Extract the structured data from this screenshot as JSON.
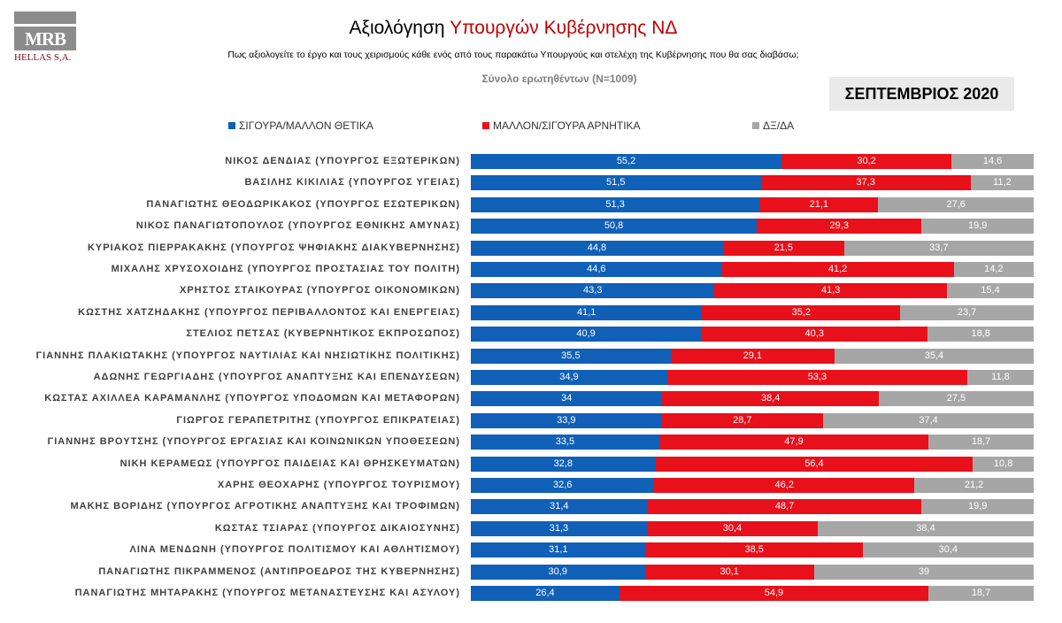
{
  "logo": {
    "text": "MRB",
    "subtitle": "HELLAS S.A."
  },
  "header": {
    "title_black": "Αξιολόγηση",
    "title_red": "Υπουργών Κυβέρνησης ΝΔ",
    "question": "Πως αξιολογείτε το έργο και τους χειρισμούς κάθε ενός  από τους παρακάτω Υπουργούς και στελέχη της  Κυβέρνησης  που θα σας διαβάσω;",
    "total": "Σύνολο ερωτηθέντων (Ν=1009)",
    "date": "ΣΕΠΤΕΜΒΡΙΟΣ 2020"
  },
  "chart_data": {
    "type": "bar",
    "orientation": "horizontal",
    "stacked": true,
    "grid": false,
    "legend_position": "top",
    "categories": [
      "ΝΙΚΟΣ ΔΕΝΔΙΑΣ (ΥΠΟΥΡΓΟΣ ΕΞΩΤΕΡΙΚΩΝ)",
      "ΒΑΣΙΛΗΣ ΚΙΚΙΛΙΑΣ (ΥΠΟΥΡΓΟΣ ΥΓΕΙΑΣ)",
      "ΠΑΝΑΓΙΩΤΗΣ ΘΕΟΔΩΡΙΚΑΚΟΣ (ΥΠΟΥΡΓΟΣ ΕΣΩΤΕΡΙΚΩΝ)",
      "ΝΙΚΟΣ ΠΑΝΑΓΙΩΤΟΠΟΥΛΟΣ (ΥΠΟΥΡΓΟΣ ΕΘΝΙΚΗΣ ΑΜΥΝΑΣ)",
      "ΚΥΡΙΑΚΟΣ ΠΙΕΡΡΑΚΑΚΗΣ (ΥΠΟΥΡΓΟΣ ΨΗΦΙΑΚΗΣ ΔΙΑΚΥΒΕΡΝΗΣΗΣ)",
      "ΜΙΧΑΛΗΣ ΧΡΥΣΟΧΟΙΔΗΣ (ΥΠΟΥΡΓΟΣ ΠΡΟΣΤΑΣΙΑΣ ΤΟΥ ΠΟΛΙΤΗ)",
      "ΧΡΗΣΤΟΣ ΣΤΑΙΚΟΥΡΑΣ (ΥΠΟΥΡΓΟΣ ΟΙΚΟΝΟΜΙΚΩΝ)",
      "ΚΩΣΤΗΣ ΧΑΤΖΗΔΑΚΗΣ (ΥΠΟΥΡΓΟΣ ΠΕΡΙΒΑΛΛΟΝΤΟΣ ΚΑΙ ΕΝΕΡΓΕΙΑΣ)",
      "ΣΤΕΛΙΟΣ ΠΕΤΣΑΣ (ΚΥΒΕΡΝΗΤΙΚΟΣ ΕΚΠΡΟΣΩΠΟΣ)",
      "ΓΙΑΝΝΗΣ ΠΛΑΚΙΩΤΑΚΗΣ (ΥΠΟΥΡΓΟΣ ΝΑΥΤΙΛΙΑΣ ΚΑΙ ΝΗΣΙΩΤΙΚΗΣ ΠΟΛΙΤΙΚΗΣ)",
      "ΑΔΩΝΗΣ ΓΕΩΡΓΙΑΔΗΣ (ΥΠΟΥΡΓΟΣ ΑΝΑΠΤΥΞΗΣ ΚΑΙ ΕΠΕΝΔΥΣΕΩΝ)",
      "ΚΩΣΤΑΣ ΑΧΙΛΛΕΑ ΚΑΡΑΜΑΝΛΗΣ (ΥΠΟΥΡΓΟΣ ΥΠΟΔΟΜΩΝ ΚΑΙ ΜΕΤΑΦΟΡΩΝ)",
      "ΓΙΩΡΓΟΣ ΓΕΡΑΠΕΤΡΙΤΗΣ (ΥΠΟΥΡΓΟΣ ΕΠΙΚΡΑΤΕΙΑΣ)",
      "ΓΙΑΝΝΗΣ ΒΡΟΥΤΣΗΣ (ΥΠΟΥΡΓΟΣ ΕΡΓΑΣΙΑΣ ΚΑΙ ΚΟΙΝΩΝΙΚΩΝ ΥΠΟΘΕΣΕΩΝ)",
      "ΝΙΚΗ ΚΕΡΑΜΕΩΣ (ΥΠΟΥΡΓΟΣ ΠΑΙΔΕΙΑΣ ΚΑΙ ΘΡΗΣΚΕΥΜΑΤΩΝ)",
      "ΧΑΡΗΣ ΘΕΟΧΑΡΗΣ (ΥΠΟΥΡΓΟΣ ΤΟΥΡΙΣΜΟΥ)",
      "ΜΑΚΗΣ ΒΟΡΙΔΗΣ (ΥΠΟΥΡΓΟΣ ΑΓΡΟΤΙΚΗΣ ΑΝΑΠΤΥΞΗΣ ΚΑΙ ΤΡΟΦΙΜΩΝ)",
      "ΚΩΣΤΑΣ ΤΣΙΑΡΑΣ (ΥΠΟΥΡΓΟΣ ΔΙΚΑΙΟΣΥΝΗΣ)",
      "ΛΙΝΑ ΜΕΝΔΩΝΗ (ΥΠΟΥΡΓΟΣ ΠΟΛΙΤΙΣΜΟΥ ΚΑΙ ΑΘΛΗΤΙΣΜΟΥ)",
      "ΠΑΝΑΓΙΩΤΗΣ ΠΙΚΡΑΜΜΕΝΟΣ (ΑΝΤΙΠΡΟΕΔΡΟΣ ΤΗΣ ΚΥΒΕΡΝΗΣΗΣ)",
      "ΠΑΝΑΓΙΩΤΗΣ ΜΗΤΑΡΑΚΗΣ (ΥΠΟΥΡΓΟΣ ΜΕΤΑΝΑΣΤΕΥΣΗΣ ΚΑΙ ΑΣΥΛΟΥ)"
    ],
    "series": [
      {
        "name": "ΣΙΓΟΥΡΑ/ΜΑΛΛΟΝ ΘΕΤΙΚΑ",
        "color": "#1060b8",
        "values": [
          55.2,
          51.5,
          51.3,
          50.8,
          44.8,
          44.6,
          43.3,
          41.1,
          40.9,
          35.5,
          34.9,
          34,
          33.9,
          33.5,
          32.8,
          32.6,
          31.4,
          31.3,
          31.1,
          30.9,
          26.4
        ]
      },
      {
        "name": "ΜΑΛΛΟΝ/ΣΙΓΟΥΡΑ ΑΡΝΗΤΙΚΑ",
        "color": "#e8101a",
        "values": [
          30.2,
          37.3,
          21.1,
          29.3,
          21.5,
          41.2,
          41.3,
          35.2,
          40.3,
          29.1,
          53.3,
          38.4,
          28.7,
          47.9,
          56.4,
          46.2,
          48.7,
          30.4,
          38.5,
          30.1,
          54.9
        ]
      },
      {
        "name": "ΔΞ/ΔΑ",
        "color": "#a6a6a6",
        "values": [
          14.6,
          11.2,
          27.6,
          19.9,
          33.7,
          14.2,
          15.4,
          23.7,
          18.8,
          35.4,
          11.8,
          27.5,
          37.4,
          18.7,
          10.8,
          21.2,
          19.9,
          38.4,
          30.4,
          39,
          18.7
        ]
      }
    ]
  }
}
